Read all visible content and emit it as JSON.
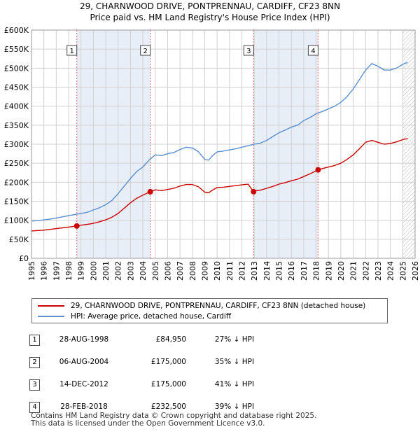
{
  "title_line1": "29, CHARNWOOD DRIVE, PONTPRENNAU, CARDIFF, CF23 8NN",
  "title_line2": "Price paid vs. HM Land Registry's House Price Index (HPI)",
  "legend": {
    "red_label": "29, CHARNWOOD DRIVE, PONTPRENNAU, CARDIFF, CF23 8NN (detached house)",
    "blue_label": "HPI: Average price, detached house, Cardiff"
  },
  "colors": {
    "price_line": "#cc0000",
    "hpi_line": "#5b8fd0",
    "shade": "#e8eef8",
    "marker_line": "#dd6666",
    "grid": "#d0d0d0"
  },
  "transactions": [
    {
      "num": "1",
      "date": "28-AUG-1998",
      "price": "£84,950",
      "hpi": "27% ↓ HPI"
    },
    {
      "num": "2",
      "date": "06-AUG-2004",
      "price": "£175,000",
      "hpi": "35% ↓ HPI"
    },
    {
      "num": "3",
      "date": "14-DEC-2012",
      "price": "£175,000",
      "hpi": "41% ↓ HPI"
    },
    {
      "num": "4",
      "date": "28-FEB-2018",
      "price": "£232,500",
      "hpi": "39% ↓ HPI"
    }
  ],
  "footer": {
    "line1": "Contains HM Land Registry data © Crown copyright and database right 2025.",
    "line2": "This data is licensed under the Open Government Licence v3.0."
  },
  "chart_data": {
    "type": "line",
    "title": "29, CHARNWOOD DRIVE, PONTPRENNAU, CARDIFF, CF23 8NN — Price paid vs. HM Land Registry's House Price Index (HPI)",
    "xlabel": "",
    "ylabel": "",
    "xlim": [
      1995,
      2026
    ],
    "ylim": [
      0,
      600000
    ],
    "x_ticks": [
      1995,
      1996,
      1997,
      1998,
      1999,
      2000,
      2001,
      2002,
      2003,
      2004,
      2005,
      2006,
      2007,
      2008,
      2009,
      2010,
      2011,
      2012,
      2013,
      2014,
      2015,
      2016,
      2017,
      2018,
      2019,
      2020,
      2021,
      2022,
      2023,
      2024,
      2025,
      2026
    ],
    "y_ticks": [
      0,
      50000,
      100000,
      150000,
      200000,
      250000,
      300000,
      350000,
      400000,
      450000,
      500000,
      550000,
      600000
    ],
    "y_tick_labels": [
      "£0",
      "£50K",
      "£100K",
      "£150K",
      "£200K",
      "£250K",
      "£300K",
      "£350K",
      "£400K",
      "£450K",
      "£500K",
      "£550K",
      "£600K"
    ],
    "forecast_start": 2025.0,
    "series": [
      {
        "name": "HPI: Average price, detached house, Cardiff",
        "color": "#5b8fd0",
        "x": [
          1995,
          1995.5,
          1996,
          1996.5,
          1997,
          1997.5,
          1998,
          1998.5,
          1999,
          1999.5,
          2000,
          2000.5,
          2001,
          2001.5,
          2002,
          2002.5,
          2003,
          2003.5,
          2004,
          2004.5,
          2005,
          2005.5,
          2006,
          2006.5,
          2007,
          2007.5,
          2008,
          2008.5,
          2009,
          2009.3,
          2009.7,
          2010,
          2010.5,
          2011,
          2011.5,
          2012,
          2012.5,
          2013,
          2013.5,
          2014,
          2014.5,
          2015,
          2015.5,
          2016,
          2016.5,
          2017,
          2017.5,
          2018,
          2018.5,
          2019,
          2019.5,
          2020,
          2020.5,
          2021,
          2021.5,
          2022,
          2022.5,
          2023,
          2023.5,
          2024,
          2024.5,
          2025,
          2025.4
        ],
        "values": [
          98000,
          99000,
          101000,
          103000,
          106000,
          109000,
          112000,
          115000,
          118000,
          121000,
          127000,
          133000,
          141000,
          152000,
          170000,
          190000,
          210000,
          228000,
          240000,
          258000,
          272000,
          270000,
          275000,
          278000,
          286000,
          292000,
          290000,
          280000,
          260000,
          258000,
          272000,
          280000,
          282000,
          285000,
          288000,
          292000,
          296000,
          300000,
          303000,
          310000,
          320000,
          330000,
          337000,
          345000,
          350000,
          362000,
          370000,
          380000,
          386000,
          393000,
          400000,
          410000,
          425000,
          445000,
          470000,
          495000,
          512000,
          505000,
          495000,
          495000,
          500000,
          510000,
          515000
        ]
      },
      {
        "name": "29, CHARNWOOD DRIVE, PONTPRENNAU, CARDIFF, CF23 8NN (detached house)",
        "color": "#cc0000",
        "x": [
          1995,
          1995.5,
          1996,
          1996.5,
          1997,
          1997.5,
          1998,
          1998.66,
          1999,
          1999.5,
          2000,
          2000.5,
          2001,
          2001.5,
          2002,
          2002.5,
          2003,
          2003.5,
          2004,
          2004.6,
          2005,
          2005.5,
          2006,
          2006.5,
          2007,
          2007.5,
          2008,
          2008.5,
          2009,
          2009.3,
          2009.7,
          2010,
          2010.5,
          2011,
          2011.5,
          2012,
          2012.5,
          2012.95,
          2013,
          2013.5,
          2014,
          2014.5,
          2015,
          2015.5,
          2016,
          2016.5,
          2017,
          2017.5,
          2018.16,
          2018.5,
          2019,
          2019.5,
          2020,
          2020.5,
          2021,
          2021.5,
          2022,
          2022.5,
          2023,
          2023.5,
          2024,
          2024.5,
          2025,
          2025.4
        ],
        "values": [
          72000,
          73000,
          74000,
          76000,
          78000,
          80000,
          82000,
          84950,
          87000,
          89000,
          92000,
          96000,
          101000,
          108000,
          118000,
          132000,
          146000,
          158000,
          166000,
          175000,
          180000,
          178000,
          181000,
          184000,
          190000,
          194000,
          194000,
          188000,
          174000,
          172000,
          181000,
          186000,
          187000,
          189000,
          191000,
          193000,
          195000,
          175000,
          177000,
          179000,
          184000,
          189000,
          195000,
          199000,
          204000,
          208000,
          215000,
          222000,
          232500,
          236000,
          240000,
          244000,
          250000,
          260000,
          272000,
          288000,
          305000,
          310000,
          305000,
          300000,
          302000,
          306000,
          312000,
          315000
        ]
      }
    ],
    "markers": [
      {
        "label": "1",
        "x": 1998.66,
        "y": 84950
      },
      {
        "label": "2",
        "x": 2004.6,
        "y": 175000
      },
      {
        "label": "3",
        "x": 2012.95,
        "y": 175000
      },
      {
        "label": "4",
        "x": 2018.16,
        "y": 232500
      }
    ]
  }
}
